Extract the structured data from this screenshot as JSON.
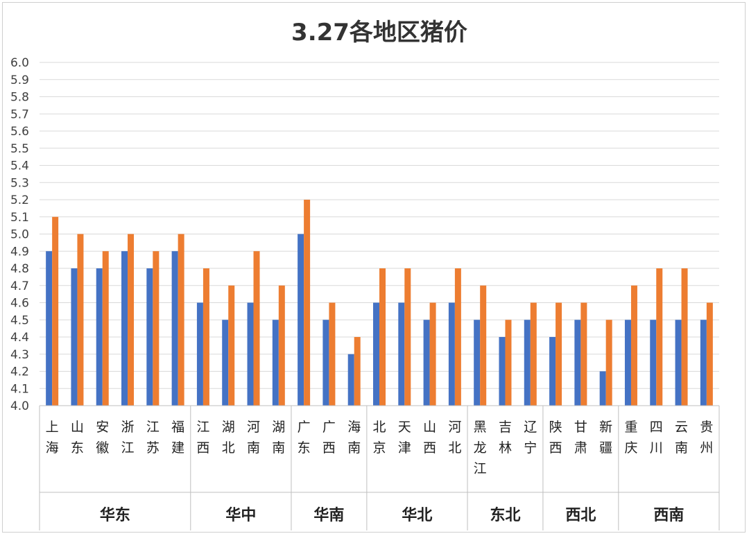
{
  "chart_data": {
    "type": "bar",
    "title": "3.27各地区猪价",
    "ylim": [
      4.0,
      6.0
    ],
    "y_ticks": [
      "4.0",
      "4.1",
      "4.2",
      "4.3",
      "4.4",
      "4.5",
      "4.6",
      "4.7",
      "4.8",
      "4.9",
      "5.0",
      "5.1",
      "5.2",
      "5.3",
      "5.4",
      "5.5",
      "5.6",
      "5.7",
      "5.8",
      "5.9",
      "6.0"
    ],
    "grid": true,
    "categories": [
      "上海",
      "山东",
      "安徽",
      "浙江",
      "江苏",
      "福建",
      "江西",
      "湖北",
      "河南",
      "湖南",
      "广东",
      "广西",
      "海南",
      "北京",
      "天津",
      "山西",
      "河北",
      "黑龙江",
      "吉林",
      "辽宁",
      "陕西",
      "甘肃",
      "新疆",
      "重庆",
      "四川",
      "云南",
      "贵州"
    ],
    "groups": [
      {
        "name": "华东",
        "count": 6
      },
      {
        "name": "华中",
        "count": 4
      },
      {
        "name": "华南",
        "count": 3
      },
      {
        "name": "华北",
        "count": 4
      },
      {
        "name": "东北",
        "count": 3
      },
      {
        "name": "西北",
        "count": 3
      },
      {
        "name": "西南",
        "count": 4
      }
    ],
    "series": [
      {
        "color": "#4472C4",
        "values": [
          4.9,
          4.8,
          4.8,
          4.9,
          4.8,
          4.9,
          4.6,
          4.5,
          4.6,
          4.5,
          5.0,
          4.5,
          4.3,
          4.6,
          4.6,
          4.5,
          4.6,
          4.5,
          4.4,
          4.5,
          4.4,
          4.5,
          4.2,
          4.5,
          4.5,
          4.5,
          4.5
        ]
      },
      {
        "color": "#ED7D31",
        "values": [
          5.1,
          5.0,
          4.9,
          5.0,
          4.9,
          5.0,
          4.8,
          4.7,
          4.9,
          4.7,
          5.2,
          4.6,
          4.4,
          4.8,
          4.8,
          4.6,
          4.8,
          4.7,
          4.5,
          4.6,
          4.6,
          4.6,
          4.5,
          4.7,
          4.8,
          4.8,
          4.6
        ]
      }
    ]
  }
}
